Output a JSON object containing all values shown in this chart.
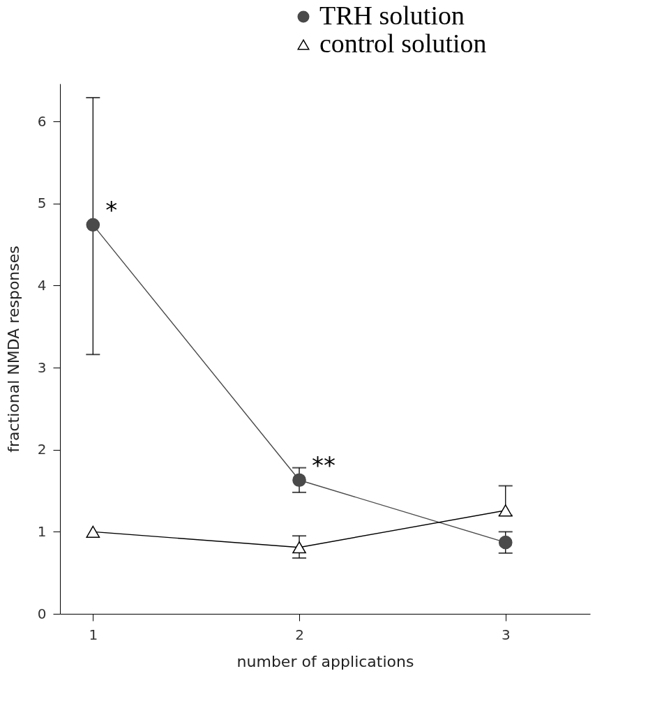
{
  "chart_data": {
    "type": "line",
    "xlabel": "number of applications",
    "ylabel": "fractional NMDA responses",
    "x": [
      1,
      2,
      3
    ],
    "series": [
      {
        "name": "TRH solution",
        "color": "#4a4a4a",
        "marker": "circle",
        "values": [
          4.74,
          1.63,
          0.87
        ],
        "errors": [
          [
            3.16,
            6.29
          ],
          [
            1.48,
            1.78
          ],
          [
            0.74,
            1.0
          ]
        ]
      },
      {
        "name": "control solution",
        "color": "#000000",
        "marker": "triangle",
        "values": [
          1.0,
          0.81,
          1.26
        ],
        "errors": [
          null,
          [
            0.68,
            0.95
          ],
          [
            1.2,
            1.56
          ]
        ]
      }
    ],
    "annotations": [
      "*",
      "**"
    ],
    "xlim": [
      0.84,
      3.41
    ],
    "xticks": [
      1,
      2,
      3
    ],
    "ylim": [
      0,
      6.46
    ],
    "yticks": [
      0,
      1,
      2,
      3,
      4,
      5,
      6
    ],
    "grid": false,
    "legend": "top right"
  }
}
